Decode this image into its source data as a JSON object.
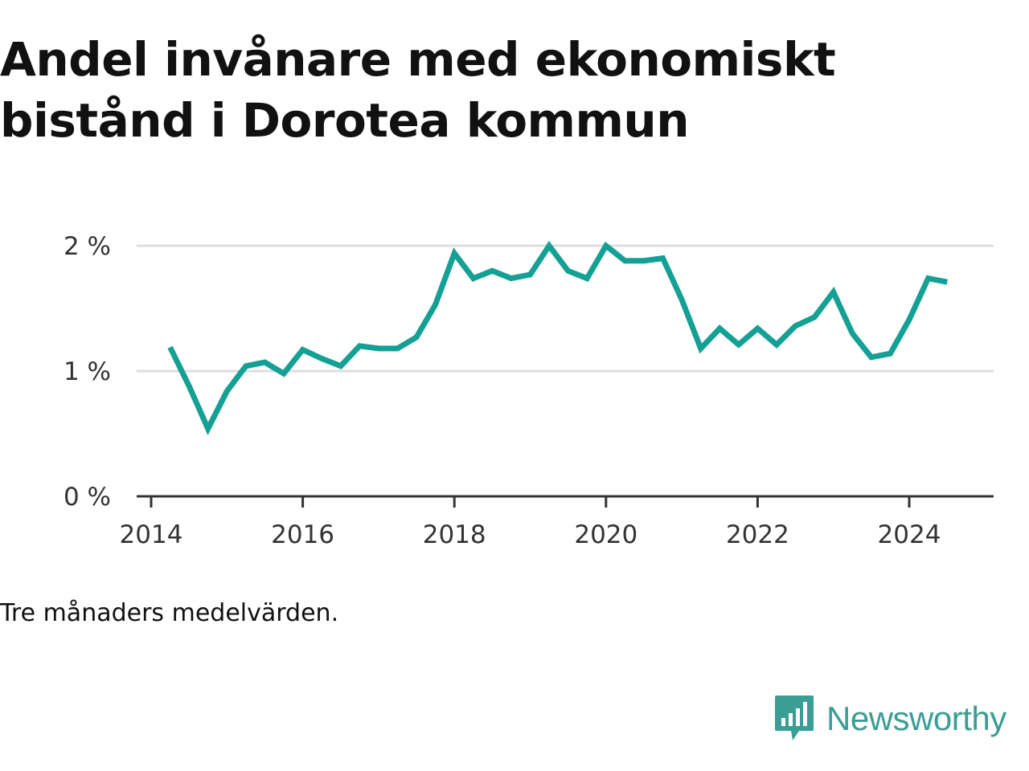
{
  "header": {
    "title": "Andel invånare med ekonomiskt bistånd i Dorotea kommun"
  },
  "chart_data": {
    "type": "line",
    "title": "Andel invånare med ekonomiskt bistånd i Dorotea kommun",
    "xlabel": "",
    "ylabel": "",
    "x_ticks": [
      "2014",
      "2016",
      "2018",
      "2020",
      "2022",
      "2024"
    ],
    "y_ticks": [
      "0 %",
      "1 %",
      "2 %"
    ],
    "xlim": [
      2014.0,
      2025.3
    ],
    "ylim": [
      0,
      2
    ],
    "grid": true,
    "line_color": "#14a094",
    "series": [
      {
        "x": [
          2014.25,
          2014.5,
          2014.75,
          2015.0,
          2015.25,
          2015.5,
          2015.75,
          2016.0,
          2016.25,
          2016.5,
          2016.75,
          2017.0,
          2017.25,
          2017.5,
          2017.75,
          2018.0,
          2018.25,
          2018.5,
          2018.75,
          2019.0,
          2019.25,
          2019.5,
          2019.75,
          2020.0,
          2020.25,
          2020.5,
          2020.75,
          2021.0,
          2021.25,
          2021.5,
          2021.75,
          2022.0,
          2022.25,
          2022.5,
          2022.75,
          2023.0,
          2023.25,
          2023.5,
          2023.75,
          2024.0,
          2024.25,
          2024.5
        ],
        "values": [
          1.19,
          0.88,
          0.54,
          0.84,
          1.04,
          1.07,
          0.98,
          1.17,
          1.1,
          1.04,
          1.2,
          1.18,
          1.18,
          1.27,
          1.53,
          1.94,
          1.74,
          1.8,
          1.74,
          1.77,
          2.0,
          1.8,
          1.74,
          2.0,
          1.88,
          1.88,
          1.9,
          1.57,
          1.18,
          1.34,
          1.21,
          1.34,
          1.21,
          1.36,
          1.43,
          1.63,
          1.3,
          1.11,
          1.14,
          1.41,
          1.74,
          1.71
        ]
      }
    ]
  },
  "footer": {
    "note": "Tre månaders medelvärden.",
    "brand": "Newsworthy"
  },
  "colors": {
    "accent": "#14a094",
    "brand": "#3a9e94",
    "text": "#111111",
    "grid": "#dddddd",
    "axis": "#333333"
  }
}
